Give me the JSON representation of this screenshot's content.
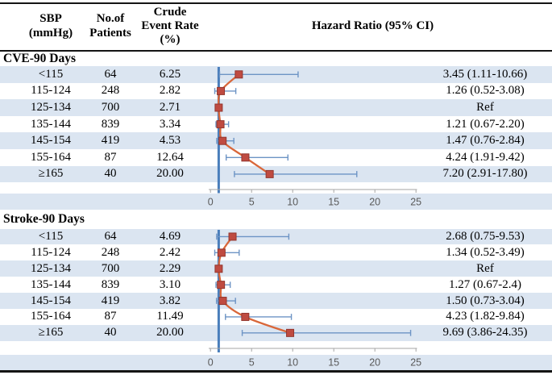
{
  "header": {
    "col_sbp": [
      "SBP",
      "(mmHg)"
    ],
    "col_patients": [
      "No.of",
      "Patients"
    ],
    "col_rate": [
      "Crude",
      "Event Rate",
      "(%)"
    ],
    "col_hr": "Hazard Ratio (95% CI)"
  },
  "colors": {
    "band": "#dbe5f1",
    "marker_fill": "#bf4b41",
    "marker_border": "#93362e",
    "connector": "#d9673a",
    "whisker": "#6d94c5",
    "refline": "#4a7ebb",
    "axis_line": "#a6a6a6",
    "axis_text": "#595959",
    "border": "#141414"
  },
  "chart_data": [
    {
      "type": "forest",
      "section": "CVE-90 Days",
      "x_ticks": [
        0,
        5,
        10,
        15,
        20,
        25
      ],
      "xlim": [
        0,
        25
      ],
      "ref_x": 1,
      "rows": [
        {
          "sbp": "<115",
          "n": "64",
          "rate": "6.25",
          "hr": 3.45,
          "ci": [
            1.11,
            10.66
          ],
          "hr_label": "3.45 (1.11-10.66)"
        },
        {
          "sbp": "115-124",
          "n": "248",
          "rate": "2.82",
          "hr": 1.26,
          "ci": [
            0.52,
            3.08
          ],
          "hr_label": "1.26 (0.52-3.08)"
        },
        {
          "sbp": "125-134",
          "n": "700",
          "rate": "2.71",
          "hr": 1.0,
          "ci": null,
          "hr_label": "Ref"
        },
        {
          "sbp": "135-144",
          "n": "839",
          "rate": "3.34",
          "hr": 1.21,
          "ci": [
            0.67,
            2.2
          ],
          "hr_label": "1.21 (0.67-2.20)"
        },
        {
          "sbp": "145-154",
          "n": "419",
          "rate": "4.53",
          "hr": 1.47,
          "ci": [
            0.76,
            2.84
          ],
          "hr_label": "1.47 (0.76-2.84)"
        },
        {
          "sbp": "155-164",
          "n": "87",
          "rate": "12.64",
          "hr": 4.24,
          "ci": [
            1.91,
            9.42
          ],
          "hr_label": "4.24 (1.91-9.42)"
        },
        {
          "sbp": "≥165",
          "n": "40",
          "rate": "20.00",
          "hr": 7.2,
          "ci": [
            2.91,
            17.8
          ],
          "hr_label": "7.20 (2.91-17.80)"
        }
      ]
    },
    {
      "type": "forest",
      "section": "Stroke-90 Days",
      "x_ticks": [
        0,
        5,
        10,
        15,
        20,
        25
      ],
      "xlim": [
        0,
        25
      ],
      "ref_x": 1,
      "rows": [
        {
          "sbp": "<115",
          "n": "64",
          "rate": "4.69",
          "hr": 2.68,
          "ci": [
            0.75,
            9.53
          ],
          "hr_label": "2.68 (0.75-9.53)"
        },
        {
          "sbp": "115-124",
          "n": "248",
          "rate": "2.42",
          "hr": 1.34,
          "ci": [
            0.52,
            3.49
          ],
          "hr_label": "1.34 (0.52-3.49)"
        },
        {
          "sbp": "125-134",
          "n": "700",
          "rate": "2.29",
          "hr": 1.0,
          "ci": null,
          "hr_label": "Ref"
        },
        {
          "sbp": "135-144",
          "n": "839",
          "rate": "3.10",
          "hr": 1.27,
          "ci": [
            0.67,
            2.4
          ],
          "hr_label": "1.27 (0.67-2.4)"
        },
        {
          "sbp": "145-154",
          "n": "419",
          "rate": "3.82",
          "hr": 1.5,
          "ci": [
            0.73,
            3.04
          ],
          "hr_label": "1.50 (0.73-3.04)"
        },
        {
          "sbp": "155-164",
          "n": "87",
          "rate": "11.49",
          "hr": 4.23,
          "ci": [
            1.82,
            9.84
          ],
          "hr_label": "4.23 (1.82-9.84)"
        },
        {
          "sbp": "≥165",
          "n": "40",
          "rate": "20.00",
          "hr": 9.69,
          "ci": [
            3.86,
            24.35
          ],
          "hr_label": "9.69 (3.86-24.35)"
        }
      ]
    }
  ]
}
